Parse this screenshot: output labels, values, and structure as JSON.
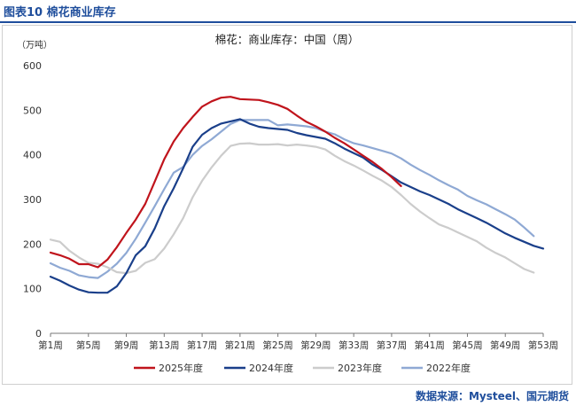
{
  "figure_label": "图表10 棉花商业库存",
  "source": "数据来源：Mysteel、国元期货",
  "chart_data": {
    "type": "line",
    "title": "棉花：商业库存：中国（周）",
    "ylabel": "（万吨）",
    "xlabel": "",
    "ylim": [
      0,
      600
    ],
    "yticks": [
      0,
      100,
      200,
      300,
      400,
      500,
      600
    ],
    "xlim": [
      1,
      53
    ],
    "xticks": [
      1,
      5,
      9,
      13,
      17,
      21,
      25,
      29,
      33,
      37,
      41,
      45,
      49,
      53
    ],
    "xtick_labels": [
      "第1周",
      "第5周",
      "第9周",
      "第13周",
      "第17周",
      "第21周",
      "第25周",
      "第29周",
      "第33周",
      "第37周",
      "第41周",
      "第45周",
      "第49周",
      "第53周"
    ],
    "series": [
      {
        "name": "2025年度",
        "color": "#c0141c",
        "x": [
          1,
          2,
          3,
          4,
          5,
          6,
          7,
          8,
          9,
          10,
          11,
          12,
          13,
          14,
          15,
          16,
          17,
          18,
          19,
          20,
          21,
          22,
          23,
          24,
          25,
          26,
          27,
          28,
          29,
          30,
          31,
          32,
          33,
          34,
          35,
          36,
          37,
          38
        ],
        "values": [
          181,
          175,
          167,
          155,
          155,
          148,
          165,
          193,
          225,
          255,
          290,
          340,
          390,
          430,
          460,
          485,
          508,
          520,
          528,
          530,
          525,
          524,
          523,
          518,
          512,
          503,
          488,
          474,
          464,
          452,
          438,
          426,
          412,
          398,
          384,
          368,
          350,
          330
        ]
      },
      {
        "name": "2024年度",
        "color": "#1a3f8a",
        "x": [
          1,
          2,
          3,
          4,
          5,
          6,
          7,
          8,
          9,
          10,
          11,
          12,
          13,
          14,
          15,
          16,
          17,
          18,
          19,
          20,
          21,
          22,
          23,
          24,
          25,
          26,
          27,
          28,
          29,
          30,
          31,
          32,
          33,
          34,
          35,
          36,
          37,
          38,
          39,
          40,
          41,
          42,
          43,
          44,
          45,
          46,
          47,
          48,
          49,
          50,
          51,
          52,
          53
        ],
        "values": [
          127,
          118,
          107,
          98,
          92,
          91,
          91,
          105,
          135,
          175,
          195,
          235,
          285,
          325,
          370,
          418,
          445,
          460,
          470,
          475,
          480,
          470,
          463,
          460,
          458,
          456,
          449,
          444,
          440,
          436,
          426,
          414,
          404,
          394,
          378,
          366,
          352,
          338,
          328,
          318,
          310,
          300,
          290,
          278,
          268,
          258,
          248,
          236,
          224,
          214,
          205,
          196,
          190
        ]
      },
      {
        "name": "2023年度",
        "color": "#cccccc",
        "x": [
          1,
          2,
          3,
          4,
          5,
          6,
          7,
          8,
          9,
          10,
          11,
          12,
          13,
          14,
          15,
          16,
          17,
          18,
          19,
          20,
          21,
          22,
          23,
          24,
          25,
          26,
          27,
          28,
          29,
          30,
          31,
          32,
          33,
          34,
          35,
          36,
          37,
          38,
          39,
          40,
          41,
          42,
          43,
          44,
          45,
          46,
          47,
          48,
          49,
          50,
          51,
          52
        ],
        "values": [
          210,
          205,
          185,
          170,
          158,
          156,
          148,
          137,
          135,
          140,
          158,
          166,
          190,
          222,
          258,
          305,
          342,
          372,
          398,
          420,
          425,
          426,
          423,
          423,
          424,
          421,
          423,
          421,
          418,
          412,
          398,
          386,
          376,
          365,
          353,
          342,
          328,
          310,
          290,
          273,
          258,
          244,
          236,
          226,
          216,
          206,
          192,
          180,
          170,
          157,
          144,
          136
        ]
      },
      {
        "name": "2022年度",
        "color": "#8fa9d4",
        "x": [
          1,
          2,
          3,
          4,
          5,
          6,
          7,
          8,
          9,
          10,
          11,
          12,
          13,
          14,
          15,
          16,
          17,
          18,
          19,
          20,
          21,
          22,
          23,
          24,
          25,
          26,
          27,
          28,
          29,
          30,
          31,
          32,
          33,
          34,
          35,
          36,
          37,
          38,
          39,
          40,
          41,
          42,
          43,
          44,
          45,
          46,
          47,
          48,
          49,
          50,
          51,
          52
        ],
        "values": [
          157,
          147,
          140,
          130,
          126,
          124,
          138,
          156,
          180,
          212,
          248,
          285,
          323,
          360,
          373,
          400,
          420,
          435,
          452,
          469,
          478,
          478,
          478,
          478,
          466,
          468,
          466,
          464,
          460,
          452,
          446,
          435,
          426,
          421,
          415,
          409,
          403,
          392,
          378,
          366,
          355,
          343,
          332,
          322,
          308,
          298,
          289,
          278,
          267,
          255,
          237,
          218
        ]
      }
    ]
  }
}
